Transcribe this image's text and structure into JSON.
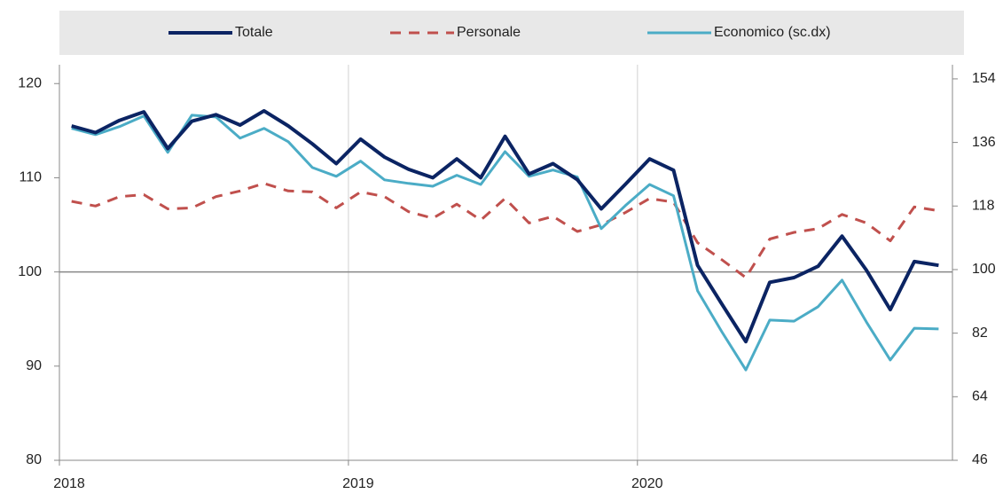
{
  "chart_data": {
    "type": "line",
    "x": [
      2018.042,
      2018.125,
      2018.208,
      2018.292,
      2018.375,
      2018.458,
      2018.542,
      2018.625,
      2018.708,
      2018.792,
      2018.875,
      2018.958,
      2019.042,
      2019.125,
      2019.208,
      2019.292,
      2019.375,
      2019.458,
      2019.542,
      2019.625,
      2019.708,
      2019.792,
      2019.875,
      2019.958,
      2020.042,
      2020.125,
      2020.208,
      2020.292,
      2020.375,
      2020.458,
      2020.542,
      2020.625,
      2020.708,
      2020.792,
      2020.875,
      2020.958,
      2021.042
    ],
    "series": [
      {
        "name": "Totale",
        "color": "#0b2463",
        "values": [
          115.5,
          114.8,
          116.1,
          117,
          113.1,
          116,
          116.7,
          115.6,
          117.1,
          115.5,
          113.6,
          111.5,
          114.1,
          112.2,
          110.9,
          110,
          112,
          110,
          114.4,
          110.4,
          111.5,
          109.8,
          106.7,
          109.3,
          112,
          110.8,
          100.7,
          96.6,
          92.6,
          98.9,
          99.4,
          100.6,
          103.8,
          100.2,
          96,
          101.1,
          100.7
        ]
      },
      {
        "name": "Personale",
        "color": "#c0504d",
        "dashed": true,
        "values": [
          107.5,
          107,
          108,
          108.2,
          106.7,
          106.8,
          108,
          108.6,
          109.4,
          108.6,
          108.5,
          106.8,
          108.5,
          108,
          106.4,
          105.7,
          107.2,
          105.5,
          107.8,
          105.2,
          105.9,
          104.3,
          105,
          106.3,
          107.8,
          107.4,
          103.1,
          101.3,
          99.4,
          103.5,
          104.2,
          104.6,
          106.1,
          105.2,
          103.3,
          106.9,
          106.5
        ]
      },
      {
        "name": "Economico (sc.dx)",
        "color": "#4bacc6",
        "axis": "y2",
        "values": [
          140,
          138.2,
          140.5,
          143.5,
          133.2,
          143.7,
          143.2,
          137.2,
          140,
          136.2,
          128.9,
          126.4,
          130.7,
          125.4,
          124.4,
          123.6,
          126.7,
          124.1,
          133.4,
          126.4,
          128.2,
          126.2,
          111.6,
          118.1,
          124.1,
          120.9,
          94,
          82.4,
          71.6,
          85.7,
          85.4,
          89.5,
          97,
          85.2,
          74.4,
          83.4,
          83.2
        ]
      }
    ],
    "xlim": [
      2018,
      2021.09
    ],
    "xticks": [
      2018,
      2019,
      2020
    ],
    "ylim": [
      80,
      122
    ],
    "yticks": [
      80,
      90,
      100,
      110,
      120
    ],
    "y2lim": [
      46,
      158
    ],
    "y2ticks": [
      46,
      64,
      82,
      100,
      118,
      136,
      154
    ],
    "reference_line": 100,
    "legend": "top"
  }
}
